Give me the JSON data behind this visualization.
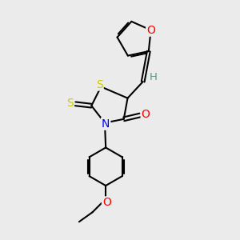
{
  "bg_color": "#ebebeb",
  "bond_color": "#000000",
  "bond_width": 1.5,
  "atom_colors": {
    "O": "#ff0000",
    "N": "#0000ff",
    "S": "#cccc00",
    "H": "#4a9a9a",
    "C": "#000000"
  },
  "font_size": 9.5
}
